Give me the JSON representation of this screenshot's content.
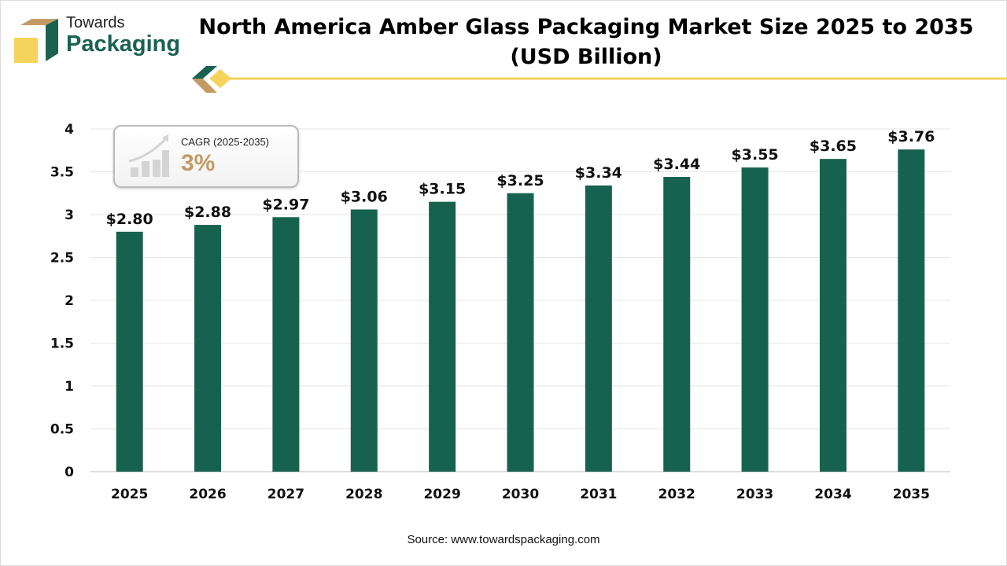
{
  "brand": {
    "line1": "Towards",
    "line2": "Packaging"
  },
  "cagr": {
    "label": "CAGR (2025-2035)",
    "value": "3%"
  },
  "source": "Source: www.towardspackaging.com",
  "colors": {
    "bar": "#17624f",
    "accent_yellow": "#f5d35c",
    "accent_tan": "#c49a64",
    "brand_green": "#1a6150"
  },
  "chart_data": {
    "type": "bar",
    "title": "North America Amber Glass Packaging Market Size 2025 to 2035 (USD Billion)",
    "categories": [
      "2025",
      "2026",
      "2027",
      "2028",
      "2029",
      "2030",
      "2031",
      "2032",
      "2033",
      "2034",
      "2035"
    ],
    "values": [
      2.8,
      2.88,
      2.97,
      3.06,
      3.15,
      3.25,
      3.34,
      3.44,
      3.55,
      3.65,
      3.76
    ],
    "data_labels": [
      "$2.80",
      "$2.88",
      "$2.97",
      "$3.06",
      "$3.15",
      "$3.25",
      "$3.34",
      "$3.44",
      "$3.55",
      "$3.65",
      "$3.76"
    ],
    "yticks": [
      "0",
      "0.5",
      "1",
      "1.5",
      "2",
      "2.5",
      "3",
      "3.5",
      "4"
    ],
    "ylim": [
      0,
      4
    ],
    "grid": true,
    "xlabel": "",
    "ylabel": ""
  }
}
